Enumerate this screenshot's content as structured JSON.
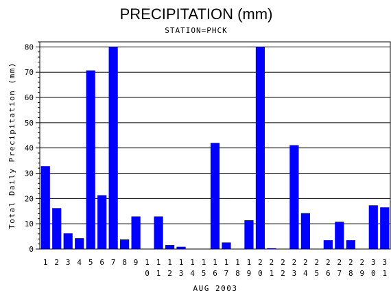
{
  "chart_data": {
    "type": "bar",
    "title": "PRECIPITATION (mm)",
    "subtitle": "STATION=PHCK",
    "xlabel": "AUG 2003",
    "ylabel": "Total Daily Precipitation (mm)",
    "ylim": [
      0,
      82
    ],
    "yticks": [
      0,
      10,
      20,
      30,
      40,
      50,
      60,
      70,
      80
    ],
    "grid": true,
    "bar_color": "#0000ff",
    "categories": [
      "1",
      "2",
      "3",
      "4",
      "5",
      "6",
      "7",
      "8",
      "9",
      "10",
      "11",
      "12",
      "13",
      "14",
      "15",
      "16",
      "17",
      "18",
      "19",
      "20",
      "21",
      "22",
      "23",
      "24",
      "25",
      "26",
      "27",
      "28",
      "29",
      "30",
      "31"
    ],
    "values": [
      32.8,
      16.2,
      6.2,
      4.3,
      70.7,
      21.3,
      80.0,
      3.8,
      12.9,
      0,
      12.9,
      1.6,
      0.9,
      0,
      0,
      42.0,
      2.6,
      0,
      11.4,
      80.0,
      0.3,
      0,
      41.1,
      14.2,
      0,
      3.5,
      10.8,
      3.5,
      0,
      17.3,
      16.5
    ]
  }
}
